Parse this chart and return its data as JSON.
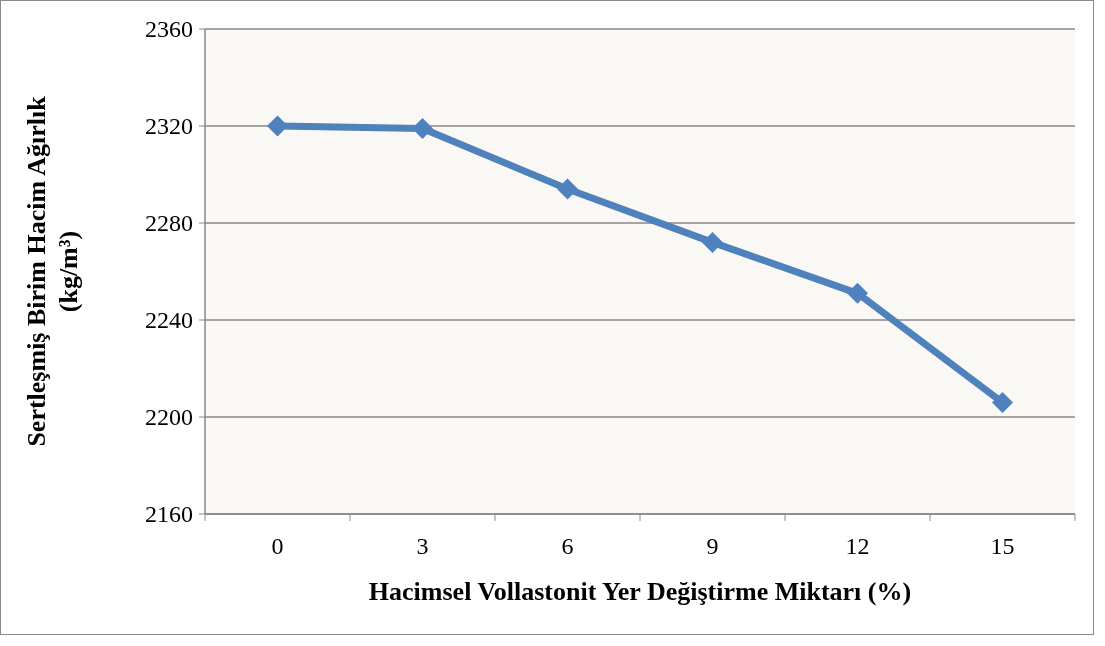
{
  "chart_data": {
    "type": "line",
    "xlabel": "Hacimsel Vollastonit Yer Değiştirme Miktarı (%)",
    "ylabel": "Sertleşmiş Birim Hacim Ağırlık\n(kg/m³)",
    "categories": [
      "0",
      "3",
      "6",
      "9",
      "12",
      "15"
    ],
    "series": [
      {
        "color": "#4f81bd",
        "values": [
          2320,
          2319,
          2294,
          2272,
          2251,
          2206
        ]
      }
    ],
    "ylim": [
      2160,
      2360
    ],
    "yticks": [
      2160,
      2200,
      2240,
      2280,
      2320,
      2360
    ],
    "grid": "y",
    "marker": "diamond"
  }
}
